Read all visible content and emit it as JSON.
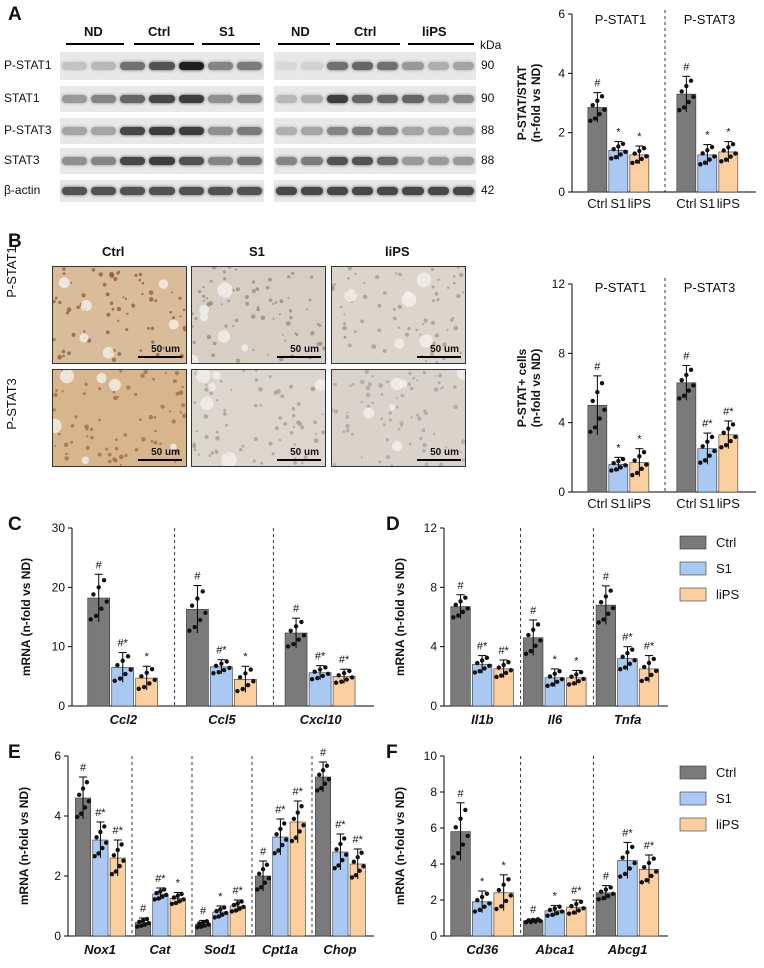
{
  "panels": {
    "a": "A",
    "b": "B",
    "c": "C",
    "d": "D",
    "e": "E",
    "f": "F"
  },
  "blot": {
    "left_groups": [
      "ND",
      "Ctrl",
      "S1"
    ],
    "right_groups": [
      "ND",
      "Ctrl",
      "liPS"
    ],
    "kda_header": "kDa",
    "rows": [
      {
        "label": "P-STAT1",
        "kda": "90"
      },
      {
        "label": "STAT1",
        "kda": "90"
      },
      {
        "label": "P-STAT3",
        "kda": "88"
      },
      {
        "label": "STAT3",
        "kda": "88"
      },
      {
        "label": "β-actin",
        "kda": "42"
      }
    ]
  },
  "ihc": {
    "columns": [
      "Ctrl",
      "S1",
      "liPS"
    ],
    "rows": [
      "P-STAT1",
      "P-STAT3"
    ],
    "scale_bar": "50 um"
  },
  "legend": {
    "items": [
      "Ctrl",
      "S1",
      "liPS"
    ]
  },
  "colors": {
    "Ctrl": "#7a7a7a",
    "S1": "#a9c8f2",
    "liPS": "#fbcf9e"
  },
  "chart_data": [
    {
      "id": "A",
      "type": "bar",
      "ylabel": "P-STAT/STAT\n(n-fold vs ND)",
      "ylim": [
        0,
        6
      ],
      "yticks": [
        0,
        2,
        4,
        6
      ],
      "groups": [
        {
          "name": "P-STAT1",
          "categories": [
            "Ctrl",
            "S1",
            "liPS"
          ],
          "values": [
            2.85,
            1.4,
            1.25
          ],
          "errors": [
            0.5,
            0.3,
            0.3
          ],
          "marks": [
            "#",
            "*",
            "*"
          ]
        },
        {
          "name": "P-STAT3",
          "categories": [
            "Ctrl",
            "S1",
            "liPS"
          ],
          "values": [
            3.3,
            1.25,
            1.35
          ],
          "errors": [
            0.6,
            0.35,
            0.35
          ],
          "marks": [
            "#",
            "*",
            "*"
          ]
        }
      ]
    },
    {
      "id": "B",
      "type": "bar",
      "ylabel": "P-STAT+ cells\n(n-fold vs ND)",
      "ylim": [
        0,
        12
      ],
      "yticks": [
        0,
        4,
        8,
        12
      ],
      "groups": [
        {
          "name": "P-STAT1",
          "categories": [
            "Ctrl",
            "S1",
            "liPS"
          ],
          "values": [
            5.0,
            1.6,
            1.7
          ],
          "errors": [
            1.7,
            0.4,
            0.8
          ],
          "marks": [
            "#",
            "*",
            "*"
          ]
        },
        {
          "name": "P-STAT3",
          "categories": [
            "Ctrl",
            "S1",
            "liPS"
          ],
          "values": [
            6.3,
            2.5,
            3.3
          ],
          "errors": [
            1.0,
            0.9,
            0.8
          ],
          "marks": [
            "#",
            "#*",
            "#*"
          ]
        }
      ]
    },
    {
      "id": "C",
      "type": "bar",
      "ylabel": "mRNA (n-fold vs ND)",
      "ylim": [
        0,
        30
      ],
      "yticks": [
        0,
        10,
        20,
        30
      ],
      "groups": [
        {
          "name": "Ccl2",
          "values": [
            18.2,
            6.5,
            4.7
          ],
          "errors": [
            4.0,
            2.5,
            2.0
          ],
          "marks": [
            "#",
            "#*",
            "*"
          ]
        },
        {
          "name": "Ccl5",
          "values": [
            16.3,
            6.6,
            4.5
          ],
          "errors": [
            4.0,
            1.2,
            2.2
          ],
          "marks": [
            "#",
            "#*",
            "*"
          ]
        },
        {
          "name": "Cxcl10",
          "values": [
            12.3,
            5.6,
            5.0
          ],
          "errors": [
            2.5,
            1.2,
            1.2
          ],
          "marks": [
            "#",
            "#*",
            "#*"
          ]
        }
      ]
    },
    {
      "id": "D",
      "type": "bar",
      "ylabel": "mRNA (n-fold vs ND)",
      "ylim": [
        0,
        12
      ],
      "yticks": [
        0,
        4,
        8,
        12
      ],
      "groups": [
        {
          "name": "Il1b",
          "values": [
            6.7,
            2.8,
            2.5
          ],
          "errors": [
            0.8,
            0.6,
            0.6
          ],
          "marks": [
            "#",
            "#*",
            "#*"
          ]
        },
        {
          "name": "Il6",
          "values": [
            4.6,
            1.9,
            1.9
          ],
          "errors": [
            1.2,
            0.6,
            0.5
          ],
          "marks": [
            "#",
            "*",
            "*"
          ]
        },
        {
          "name": "Tnfa",
          "values": [
            6.8,
            3.2,
            2.5
          ],
          "errors": [
            1.3,
            0.8,
            0.9
          ],
          "marks": [
            "#",
            "#*",
            "#*"
          ]
        }
      ]
    },
    {
      "id": "E",
      "type": "bar",
      "ylabel": "mRNA (n-fold vs ND)",
      "ylim": [
        0,
        6
      ],
      "yticks": [
        0,
        2,
        4,
        6
      ],
      "groups": [
        {
          "name": "Nox1",
          "values": [
            4.6,
            3.2,
            2.6
          ],
          "errors": [
            0.7,
            0.6,
            0.6
          ],
          "marks": [
            "#",
            "#*",
            "#*"
          ]
        },
        {
          "name": "Cat",
          "values": [
            0.45,
            1.4,
            1.25
          ],
          "errors": [
            0.15,
            0.2,
            0.2
          ],
          "marks": [
            "#",
            "#*",
            "*"
          ]
        },
        {
          "name": "Sod1",
          "values": [
            0.4,
            0.8,
            1.0
          ],
          "errors": [
            0.12,
            0.2,
            0.2
          ],
          "marks": [
            "#",
            "*",
            "#*"
          ]
        },
        {
          "name": "Cpt1a",
          "values": [
            2.0,
            3.3,
            3.8
          ],
          "errors": [
            0.5,
            0.6,
            0.7
          ],
          "marks": [
            "#",
            "#*",
            "#*"
          ]
        },
        {
          "name": "Chop",
          "values": [
            5.3,
            2.8,
            2.4
          ],
          "errors": [
            0.5,
            0.6,
            0.5
          ],
          "marks": [
            "#",
            "#*",
            "#*"
          ]
        }
      ]
    },
    {
      "id": "F",
      "type": "bar",
      "ylabel": "mRNA (n-fold vs ND)",
      "ylim": [
        0,
        10
      ],
      "yticks": [
        0,
        2,
        4,
        6,
        8,
        10
      ],
      "groups": [
        {
          "name": "Cd36",
          "values": [
            5.8,
            1.9,
            2.4
          ],
          "errors": [
            1.6,
            0.6,
            1.0
          ],
          "marks": [
            "#",
            "*",
            "*"
          ]
        },
        {
          "name": "Abca1",
          "values": [
            0.85,
            1.4,
            1.6
          ],
          "errors": [
            0.1,
            0.3,
            0.4
          ],
          "marks": [
            "#",
            "*",
            "#*"
          ]
        },
        {
          "name": "Abcg1",
          "values": [
            2.4,
            4.2,
            3.7
          ],
          "errors": [
            0.4,
            1.0,
            0.8
          ],
          "marks": [
            "#",
            "#*",
            "#*"
          ]
        }
      ]
    }
  ]
}
